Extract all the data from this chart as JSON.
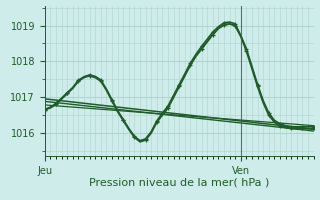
{
  "bg_color": "#ceecea",
  "grid_color": "#aed4d0",
  "line_color": "#1e5c28",
  "ylim": [
    1015.35,
    1019.55
  ],
  "xlim": [
    0,
    48
  ],
  "yticks": [
    1016,
    1017,
    1018,
    1019
  ],
  "xlabel": "Pression niveau de la mer( hPa )",
  "day_labels": [
    "Jeu",
    "Ven"
  ],
  "jeu_x": 0,
  "ven_x": 35,
  "vline_x": 35,
  "series": [
    {
      "x": [
        0,
        1,
        2,
        3,
        4,
        5,
        6,
        7,
        8,
        9,
        10,
        11,
        12,
        13,
        14,
        15,
        16,
        17,
        18,
        19,
        20,
        21,
        22,
        23,
        24,
        25,
        26,
        27,
        28,
        29,
        30,
        31,
        32,
        33,
        34,
        35,
        36,
        37,
        38,
        39,
        40,
        41,
        42,
        43,
        44,
        45,
        46,
        47,
        48
      ],
      "y": [
        1016.65,
        1016.7,
        1016.8,
        1016.95,
        1017.1,
        1017.25,
        1017.45,
        1017.55,
        1017.6,
        1017.55,
        1017.45,
        1017.2,
        1016.9,
        1016.6,
        1016.35,
        1016.1,
        1015.88,
        1015.75,
        1015.8,
        1016.0,
        1016.3,
        1016.5,
        1016.7,
        1017.0,
        1017.3,
        1017.6,
        1017.9,
        1018.15,
        1018.35,
        1018.55,
        1018.75,
        1018.92,
        1019.02,
        1019.05,
        1019.0,
        1018.7,
        1018.3,
        1017.8,
        1017.3,
        1016.85,
        1016.5,
        1016.3,
        1016.2,
        1016.15,
        1016.12,
        1016.12,
        1016.12,
        1016.12,
        1016.12
      ],
      "lw": 1.4,
      "marker": "+",
      "ms": 3.5,
      "every": 2
    },
    {
      "x": [
        0,
        1,
        2,
        3,
        4,
        5,
        6,
        7,
        8,
        9,
        10,
        11,
        12,
        13,
        14,
        15,
        16,
        17,
        18,
        19,
        20,
        21,
        22,
        23,
        24,
        25,
        26,
        27,
        28,
        29,
        30,
        31,
        32,
        33,
        34,
        35,
        36,
        37,
        38,
        39,
        40,
        41,
        42,
        43,
        44,
        45,
        46,
        47,
        48
      ],
      "y": [
        1016.65,
        1016.72,
        1016.82,
        1016.97,
        1017.12,
        1017.27,
        1017.47,
        1017.57,
        1017.62,
        1017.58,
        1017.48,
        1017.22,
        1016.92,
        1016.62,
        1016.37,
        1016.12,
        1015.9,
        1015.78,
        1015.83,
        1016.03,
        1016.33,
        1016.55,
        1016.75,
        1017.05,
        1017.35,
        1017.65,
        1017.95,
        1018.2,
        1018.42,
        1018.62,
        1018.82,
        1018.97,
        1019.08,
        1019.1,
        1019.05,
        1018.72,
        1018.35,
        1017.85,
        1017.35,
        1016.9,
        1016.55,
        1016.35,
        1016.25,
        1016.2,
        1016.17,
        1016.17,
        1016.17,
        1016.17,
        1016.17
      ],
      "lw": 1.2,
      "marker": "+",
      "ms": 3.0,
      "every": 2
    },
    {
      "x": [
        0,
        48
      ],
      "y": [
        1016.95,
        1016.1
      ],
      "lw": 1.1,
      "marker": null,
      "ms": 0,
      "every": 1
    },
    {
      "x": [
        0,
        48
      ],
      "y": [
        1016.88,
        1016.05
      ],
      "lw": 1.0,
      "marker": null,
      "ms": 0,
      "every": 1
    },
    {
      "x": [
        0,
        48
      ],
      "y": [
        1016.78,
        1016.2
      ],
      "lw": 0.9,
      "marker": null,
      "ms": 0,
      "every": 1
    }
  ]
}
